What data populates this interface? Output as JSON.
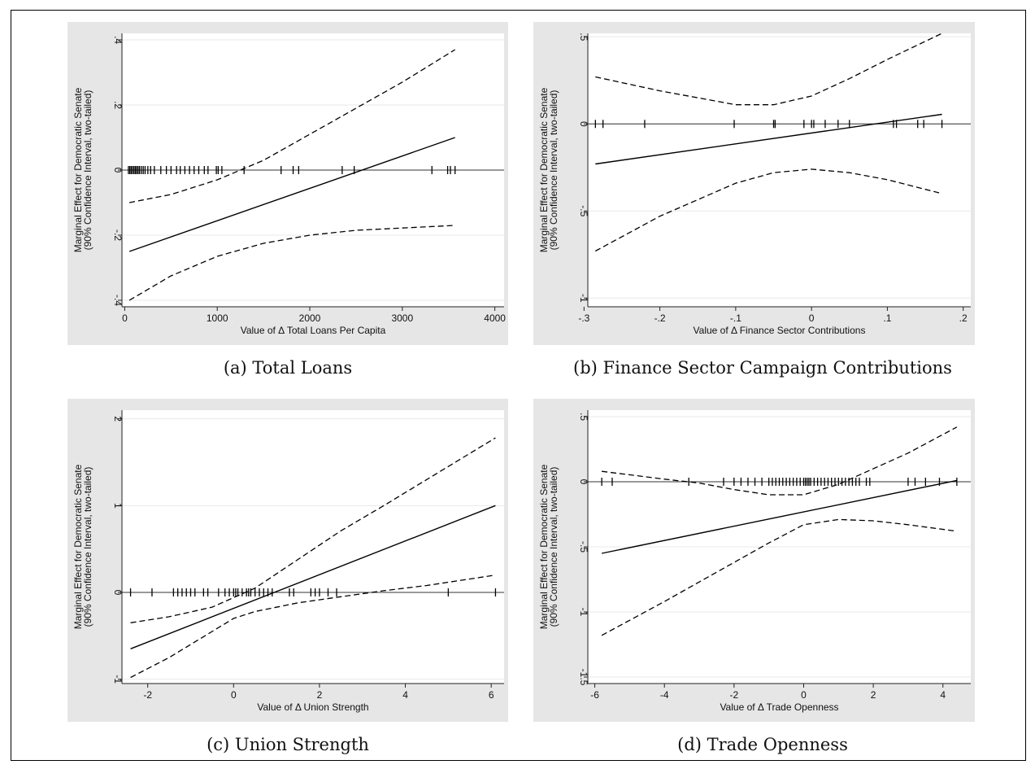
{
  "figure": {
    "captions": [
      "(a) Total Loans",
      "(b) Finance Sector Campaign Contributions",
      "(c) Union Strength",
      "(d) Trade Openness"
    ]
  },
  "chart_data": [
    {
      "type": "line",
      "ylabel_lines": [
        "Marginal Effect for Democratic Senate",
        "(90% Confidence Interval, two-tailed)"
      ],
      "xlabel": "Value of Δ Total Loans Per Capita",
      "xlim": [
        -30,
        4100
      ],
      "ylim": [
        -0.42,
        0.42
      ],
      "xticks": [
        0,
        1000,
        2000,
        3000,
        4000
      ],
      "xtick_labels": [
        "0",
        "1000",
        "2000",
        "3000",
        "4000"
      ],
      "yticks": [
        -0.4,
        -0.2,
        0,
        0.2,
        0.4
      ],
      "ytick_labels": [
        "-.4",
        "-.2",
        "0",
        ".2",
        ".4"
      ],
      "grid": true,
      "series": [
        {
          "role": "effect",
          "style": "solid",
          "x": [
            50,
            3570
          ],
          "y": [
            -0.25,
            0.1
          ]
        },
        {
          "role": "upper",
          "style": "dashed",
          "x": [
            50,
            500,
            1000,
            1500,
            2000,
            2500,
            3000,
            3570
          ],
          "y": [
            -0.1,
            -0.075,
            -0.03,
            0.03,
            0.11,
            0.19,
            0.27,
            0.37
          ]
        },
        {
          "role": "lower",
          "style": "dashed",
          "x": [
            50,
            500,
            1000,
            1500,
            2000,
            2500,
            3000,
            3570
          ],
          "y": [
            -0.4,
            -0.325,
            -0.265,
            -0.225,
            -0.2,
            -0.185,
            -0.178,
            -0.17
          ]
        }
      ],
      "rug": [
        40,
        55,
        70,
        85,
        100,
        115,
        130,
        145,
        160,
        180,
        200,
        220,
        250,
        280,
        320,
        390,
        450,
        500,
        560,
        600,
        650,
        700,
        750,
        800,
        860,
        900,
        990,
        1010,
        1050,
        1290,
        1690,
        1820,
        1880,
        2350,
        2480,
        3320,
        3490,
        3520,
        3570
      ]
    },
    {
      "type": "line",
      "ylabel_lines": [
        "Marginal Effect for Democratic Senate",
        "(90% Confidence Interval, two-tailed)"
      ],
      "xlabel": "Value of Δ Finance Sector Contributions",
      "xlim": [
        -0.295,
        0.21
      ],
      "ylim": [
        -1.05,
        0.52
      ],
      "xticks": [
        -0.3,
        -0.2,
        -0.1,
        0,
        0.1,
        0.2
      ],
      "xtick_labels": [
        "-.3",
        "-.2",
        "-.1",
        "0",
        ".1",
        ".2"
      ],
      "yticks": [
        -1,
        -0.5,
        0,
        0.5
      ],
      "ytick_labels": [
        "-1",
        "-.5",
        "0",
        ".5"
      ],
      "grid": true,
      "series": [
        {
          "role": "effect",
          "style": "solid",
          "x": [
            -0.285,
            0.172
          ],
          "y": [
            -0.23,
            0.055
          ]
        },
        {
          "role": "upper",
          "style": "dashed",
          "x": [
            -0.285,
            -0.2,
            -0.1,
            -0.05,
            0,
            0.05,
            0.1,
            0.172
          ],
          "y": [
            0.27,
            0.19,
            0.11,
            0.11,
            0.16,
            0.26,
            0.37,
            0.52
          ]
        },
        {
          "role": "lower",
          "style": "dashed",
          "x": [
            -0.285,
            -0.2,
            -0.1,
            -0.05,
            0,
            0.05,
            0.1,
            0.172
          ],
          "y": [
            -0.73,
            -0.53,
            -0.34,
            -0.28,
            -0.26,
            -0.28,
            -0.32,
            -0.4
          ]
        }
      ],
      "rug": [
        -0.285,
        -0.275,
        -0.22,
        -0.102,
        -0.05,
        -0.048,
        -0.01,
        0.0,
        0.003,
        0.018,
        0.035,
        0.05,
        0.108,
        0.112,
        0.14,
        0.148,
        0.172
      ]
    },
    {
      "type": "line",
      "ylabel_lines": [
        "Marginal Effect for Democratic Senate",
        "(90% Confidence Interval, two-tailed)"
      ],
      "xlabel": "Value of Δ Union Strength",
      "xlim": [
        -2.6,
        6.3
      ],
      "ylim": [
        -1.05,
        2.1
      ],
      "xticks": [
        -2,
        0,
        2,
        4,
        6
      ],
      "xtick_labels": [
        "-2",
        "0",
        "2",
        "4",
        "6"
      ],
      "yticks": [
        -1,
        0,
        1,
        2
      ],
      "ytick_labels": [
        "-1",
        "0",
        "1",
        "2"
      ],
      "grid": true,
      "series": [
        {
          "role": "effect",
          "style": "solid",
          "x": [
            -2.4,
            6.1
          ],
          "y": [
            -0.65,
            1.0
          ]
        },
        {
          "role": "upper",
          "style": "dashed",
          "x": [
            -2.4,
            -1.5,
            -0.5,
            0.5,
            1.5,
            2.5,
            3.5,
            4.5,
            6.1
          ],
          "y": [
            -0.35,
            -0.28,
            -0.17,
            0.05,
            0.38,
            0.71,
            1.0,
            1.3,
            1.78
          ]
        },
        {
          "role": "lower",
          "style": "dashed",
          "x": [
            -2.4,
            -1.5,
            -0.5,
            0,
            0.5,
            1.5,
            2.5,
            3.5,
            4.5,
            6.1
          ],
          "y": [
            -0.98,
            -0.75,
            -0.45,
            -0.3,
            -0.22,
            -0.12,
            -0.05,
            0.02,
            0.08,
            0.2
          ]
        }
      ],
      "rug": [
        -2.4,
        -1.9,
        -1.4,
        -1.3,
        -1.2,
        -1.1,
        -1.0,
        -0.9,
        -0.7,
        -0.6,
        -0.35,
        -0.2,
        -0.1,
        0.0,
        0.05,
        0.1,
        0.2,
        0.3,
        0.35,
        0.4,
        0.5,
        0.6,
        0.7,
        0.8,
        0.9,
        1.3,
        1.4,
        1.8,
        1.9,
        2.0,
        2.2,
        2.4,
        5.0,
        6.1
      ]
    },
    {
      "type": "line",
      "ylabel_lines": [
        "Marginal Effect for Democratic Senate",
        "(90% Confidence Interval, two-tailed)"
      ],
      "xlabel": "Value of Δ Trade Openness",
      "xlim": [
        -6.2,
        4.8
      ],
      "ylim": [
        -1.55,
        0.55
      ],
      "xticks": [
        -6,
        -4,
        -2,
        0,
        2,
        4
      ],
      "xtick_labels": [
        "-6",
        "-4",
        "-2",
        "0",
        "2",
        "4"
      ],
      "yticks": [
        -1.5,
        -1,
        -0.5,
        0,
        0.5
      ],
      "ytick_labels": [
        "-1.5",
        "-1",
        "-.5",
        "0",
        ".5"
      ],
      "grid": true,
      "series": [
        {
          "role": "effect",
          "style": "solid",
          "x": [
            -5.8,
            4.4
          ],
          "y": [
            -0.55,
            0.01
          ]
        },
        {
          "role": "upper",
          "style": "dashed",
          "x": [
            -5.8,
            -4,
            -3,
            -2,
            -1,
            0,
            1,
            2,
            3,
            4.4
          ],
          "y": [
            0.08,
            0.02,
            -0.01,
            -0.06,
            -0.1,
            -0.1,
            -0.02,
            0.1,
            0.22,
            0.42
          ]
        },
        {
          "role": "lower",
          "style": "dashed",
          "x": [
            -5.8,
            -4,
            -3,
            -2,
            -1,
            0,
            1,
            2,
            3,
            4.4
          ],
          "y": [
            -1.18,
            -0.92,
            -0.77,
            -0.62,
            -0.47,
            -0.33,
            -0.29,
            -0.3,
            -0.33,
            -0.38
          ]
        }
      ],
      "rug": [
        -5.8,
        -5.5,
        -3.3,
        -2.3,
        -2.0,
        -1.8,
        -1.6,
        -1.4,
        -1.2,
        -1.0,
        -0.9,
        -0.8,
        -0.7,
        -0.6,
        -0.5,
        -0.4,
        -0.3,
        -0.2,
        -0.1,
        0.0,
        0.05,
        0.1,
        0.15,
        0.2,
        0.3,
        0.4,
        0.5,
        0.6,
        0.7,
        0.8,
        0.9,
        1.0,
        1.1,
        1.2,
        1.3,
        1.4,
        1.5,
        1.6,
        1.8,
        1.9,
        3.0,
        3.2,
        3.5,
        3.9,
        4.4
      ]
    }
  ]
}
